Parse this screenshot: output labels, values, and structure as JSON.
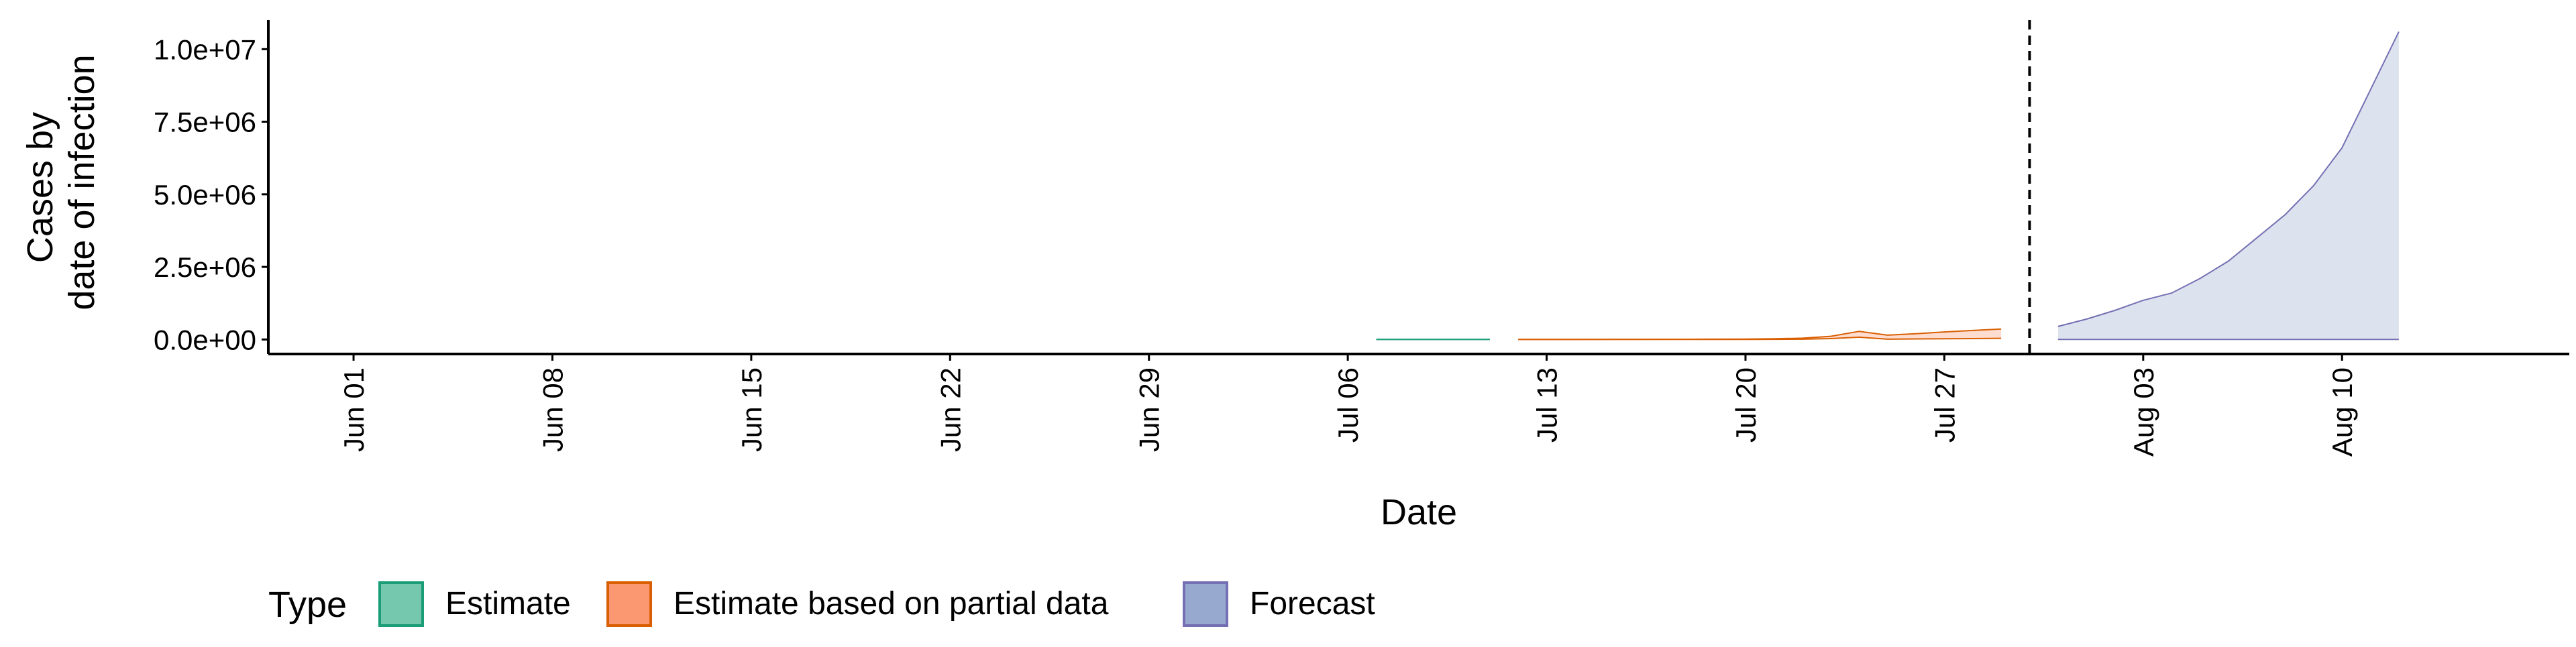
{
  "chart_data": {
    "type": "area",
    "xlabel": "Date",
    "ylabel_lines": [
      "Cases by",
      "date of infection"
    ],
    "x_ticks": [
      {
        "date": "2020-06-01",
        "label": "Jun 01"
      },
      {
        "date": "2020-06-08",
        "label": "Jun 08"
      },
      {
        "date": "2020-06-15",
        "label": "Jun 15"
      },
      {
        "date": "2020-06-22",
        "label": "Jun 22"
      },
      {
        "date": "2020-06-29",
        "label": "Jun 29"
      },
      {
        "date": "2020-07-06",
        "label": "Jul 06"
      },
      {
        "date": "2020-07-13",
        "label": "Jul 13"
      },
      {
        "date": "2020-07-20",
        "label": "Jul 20"
      },
      {
        "date": "2020-07-27",
        "label": "Jul 27"
      },
      {
        "date": "2020-08-03",
        "label": "Aug 03"
      },
      {
        "date": "2020-08-10",
        "label": "Aug 10"
      }
    ],
    "y_ticks": [
      {
        "value": 0,
        "label": "0.0e+00"
      },
      {
        "value": 2500000,
        "label": "2.5e+06"
      },
      {
        "value": 5000000,
        "label": "5.0e+06"
      },
      {
        "value": 7500000,
        "label": "7.5e+06"
      },
      {
        "value": 10000000,
        "label": "1.0e+07"
      }
    ],
    "xlim": [
      "2020-05-29",
      "2020-08-18"
    ],
    "ylim": [
      -500000,
      11000000
    ],
    "forecast_date": "2020-07-30",
    "legend": {
      "title": "Type",
      "position": "bottom",
      "entries": [
        "Estimate",
        "Estimate based on partial data",
        "Forecast"
      ]
    },
    "colors": {
      "Estimate": {
        "fill": "#66c2a5",
        "line": "#1b9e77"
      },
      "Estimate based on partial data": {
        "fill": "#fc8d62",
        "line": "#d95f02"
      },
      "Forecast": {
        "fill": "#8da0cb",
        "line": "#7570b3"
      }
    },
    "series": [
      {
        "name": "Estimate",
        "points": [
          {
            "x": "2020-07-07",
            "lower": 0,
            "upper": 1000
          },
          {
            "x": "2020-07-08",
            "lower": 0,
            "upper": 1000
          },
          {
            "x": "2020-07-09",
            "lower": 0,
            "upper": 1000
          },
          {
            "x": "2020-07-10",
            "lower": 0,
            "upper": 1000
          },
          {
            "x": "2020-07-11",
            "lower": 0,
            "upper": 1000
          }
        ]
      },
      {
        "name": "Estimate based on partial data",
        "points": [
          {
            "x": "2020-07-12",
            "lower": 0,
            "upper": 2000
          },
          {
            "x": "2020-07-14",
            "lower": 0,
            "upper": 3000
          },
          {
            "x": "2020-07-16",
            "lower": 0,
            "upper": 5000
          },
          {
            "x": "2020-07-18",
            "lower": 0,
            "upper": 8000
          },
          {
            "x": "2020-07-20",
            "lower": 0,
            "upper": 15000
          },
          {
            "x": "2020-07-21",
            "lower": 5000,
            "upper": 25000
          },
          {
            "x": "2020-07-22",
            "lower": 10000,
            "upper": 45000
          },
          {
            "x": "2020-07-23",
            "lower": 30000,
            "upper": 110000
          },
          {
            "x": "2020-07-24",
            "lower": 80000,
            "upper": 280000
          },
          {
            "x": "2020-07-25",
            "lower": 10000,
            "upper": 150000
          },
          {
            "x": "2020-07-26",
            "lower": 20000,
            "upper": 200000
          },
          {
            "x": "2020-07-27",
            "lower": 25000,
            "upper": 260000
          },
          {
            "x": "2020-07-28",
            "lower": 30000,
            "upper": 310000
          },
          {
            "x": "2020-07-29",
            "lower": 40000,
            "upper": 360000
          }
        ]
      },
      {
        "name": "Forecast",
        "points": [
          {
            "x": "2020-07-31",
            "lower": 0,
            "upper": 450000
          },
          {
            "x": "2020-08-01",
            "lower": 0,
            "upper": 700000
          },
          {
            "x": "2020-08-02",
            "lower": 0,
            "upper": 1000000
          },
          {
            "x": "2020-08-03",
            "lower": 0,
            "upper": 1350000
          },
          {
            "x": "2020-08-04",
            "lower": 0,
            "upper": 1600000
          },
          {
            "x": "2020-08-05",
            "lower": 0,
            "upper": 2100000
          },
          {
            "x": "2020-08-06",
            "lower": 0,
            "upper": 2700000
          },
          {
            "x": "2020-08-07",
            "lower": 0,
            "upper": 3500000
          },
          {
            "x": "2020-08-08",
            "lower": 0,
            "upper": 4300000
          },
          {
            "x": "2020-08-09",
            "lower": 0,
            "upper": 5300000
          },
          {
            "x": "2020-08-10",
            "lower": 0,
            "upper": 6600000
          },
          {
            "x": "2020-08-11",
            "lower": 0,
            "upper": 8600000
          },
          {
            "x": "2020-08-12",
            "lower": 0,
            "upper": 10600000
          }
        ]
      }
    ]
  }
}
